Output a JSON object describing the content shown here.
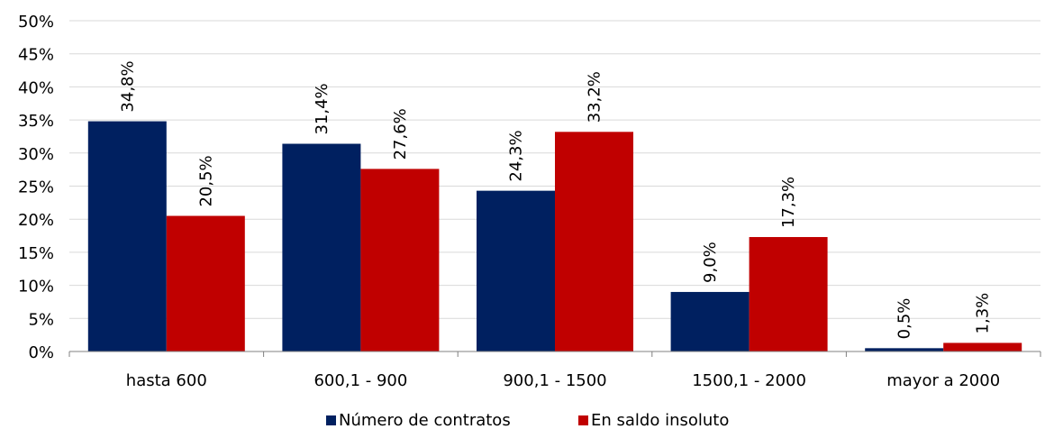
{
  "chart_data": {
    "type": "bar",
    "categories": [
      "hasta 600",
      "600,1 - 900",
      "900,1 - 1500",
      "1500,1 - 2000",
      "mayor a 2000"
    ],
    "series": [
      {
        "name": "Número de contratos",
        "color": "#002060",
        "values": [
          34.8,
          31.4,
          24.3,
          9.0,
          0.5
        ],
        "labels": [
          "34,8%",
          "31,4%",
          "24,3%",
          "9,0%",
          "0,5%"
        ]
      },
      {
        "name": "En saldo insoluto",
        "color": "#C00000",
        "values": [
          20.5,
          27.6,
          33.2,
          17.3,
          1.3
        ],
        "labels": [
          "20,5%",
          "27,6%",
          "33,2%",
          "17,3%",
          "1,3%"
        ]
      }
    ],
    "ylim": [
      0,
      50
    ],
    "yticks": [
      0,
      5,
      10,
      15,
      20,
      25,
      30,
      35,
      40,
      45,
      50
    ],
    "ytick_labels": [
      "0%",
      "5%",
      "10%",
      "15%",
      "20%",
      "25%",
      "30%",
      "35%",
      "40%",
      "45%",
      "50%"
    ],
    "grid": true,
    "legend_position": "bottom-center",
    "title": "",
    "xlabel": "",
    "ylabel": ""
  }
}
